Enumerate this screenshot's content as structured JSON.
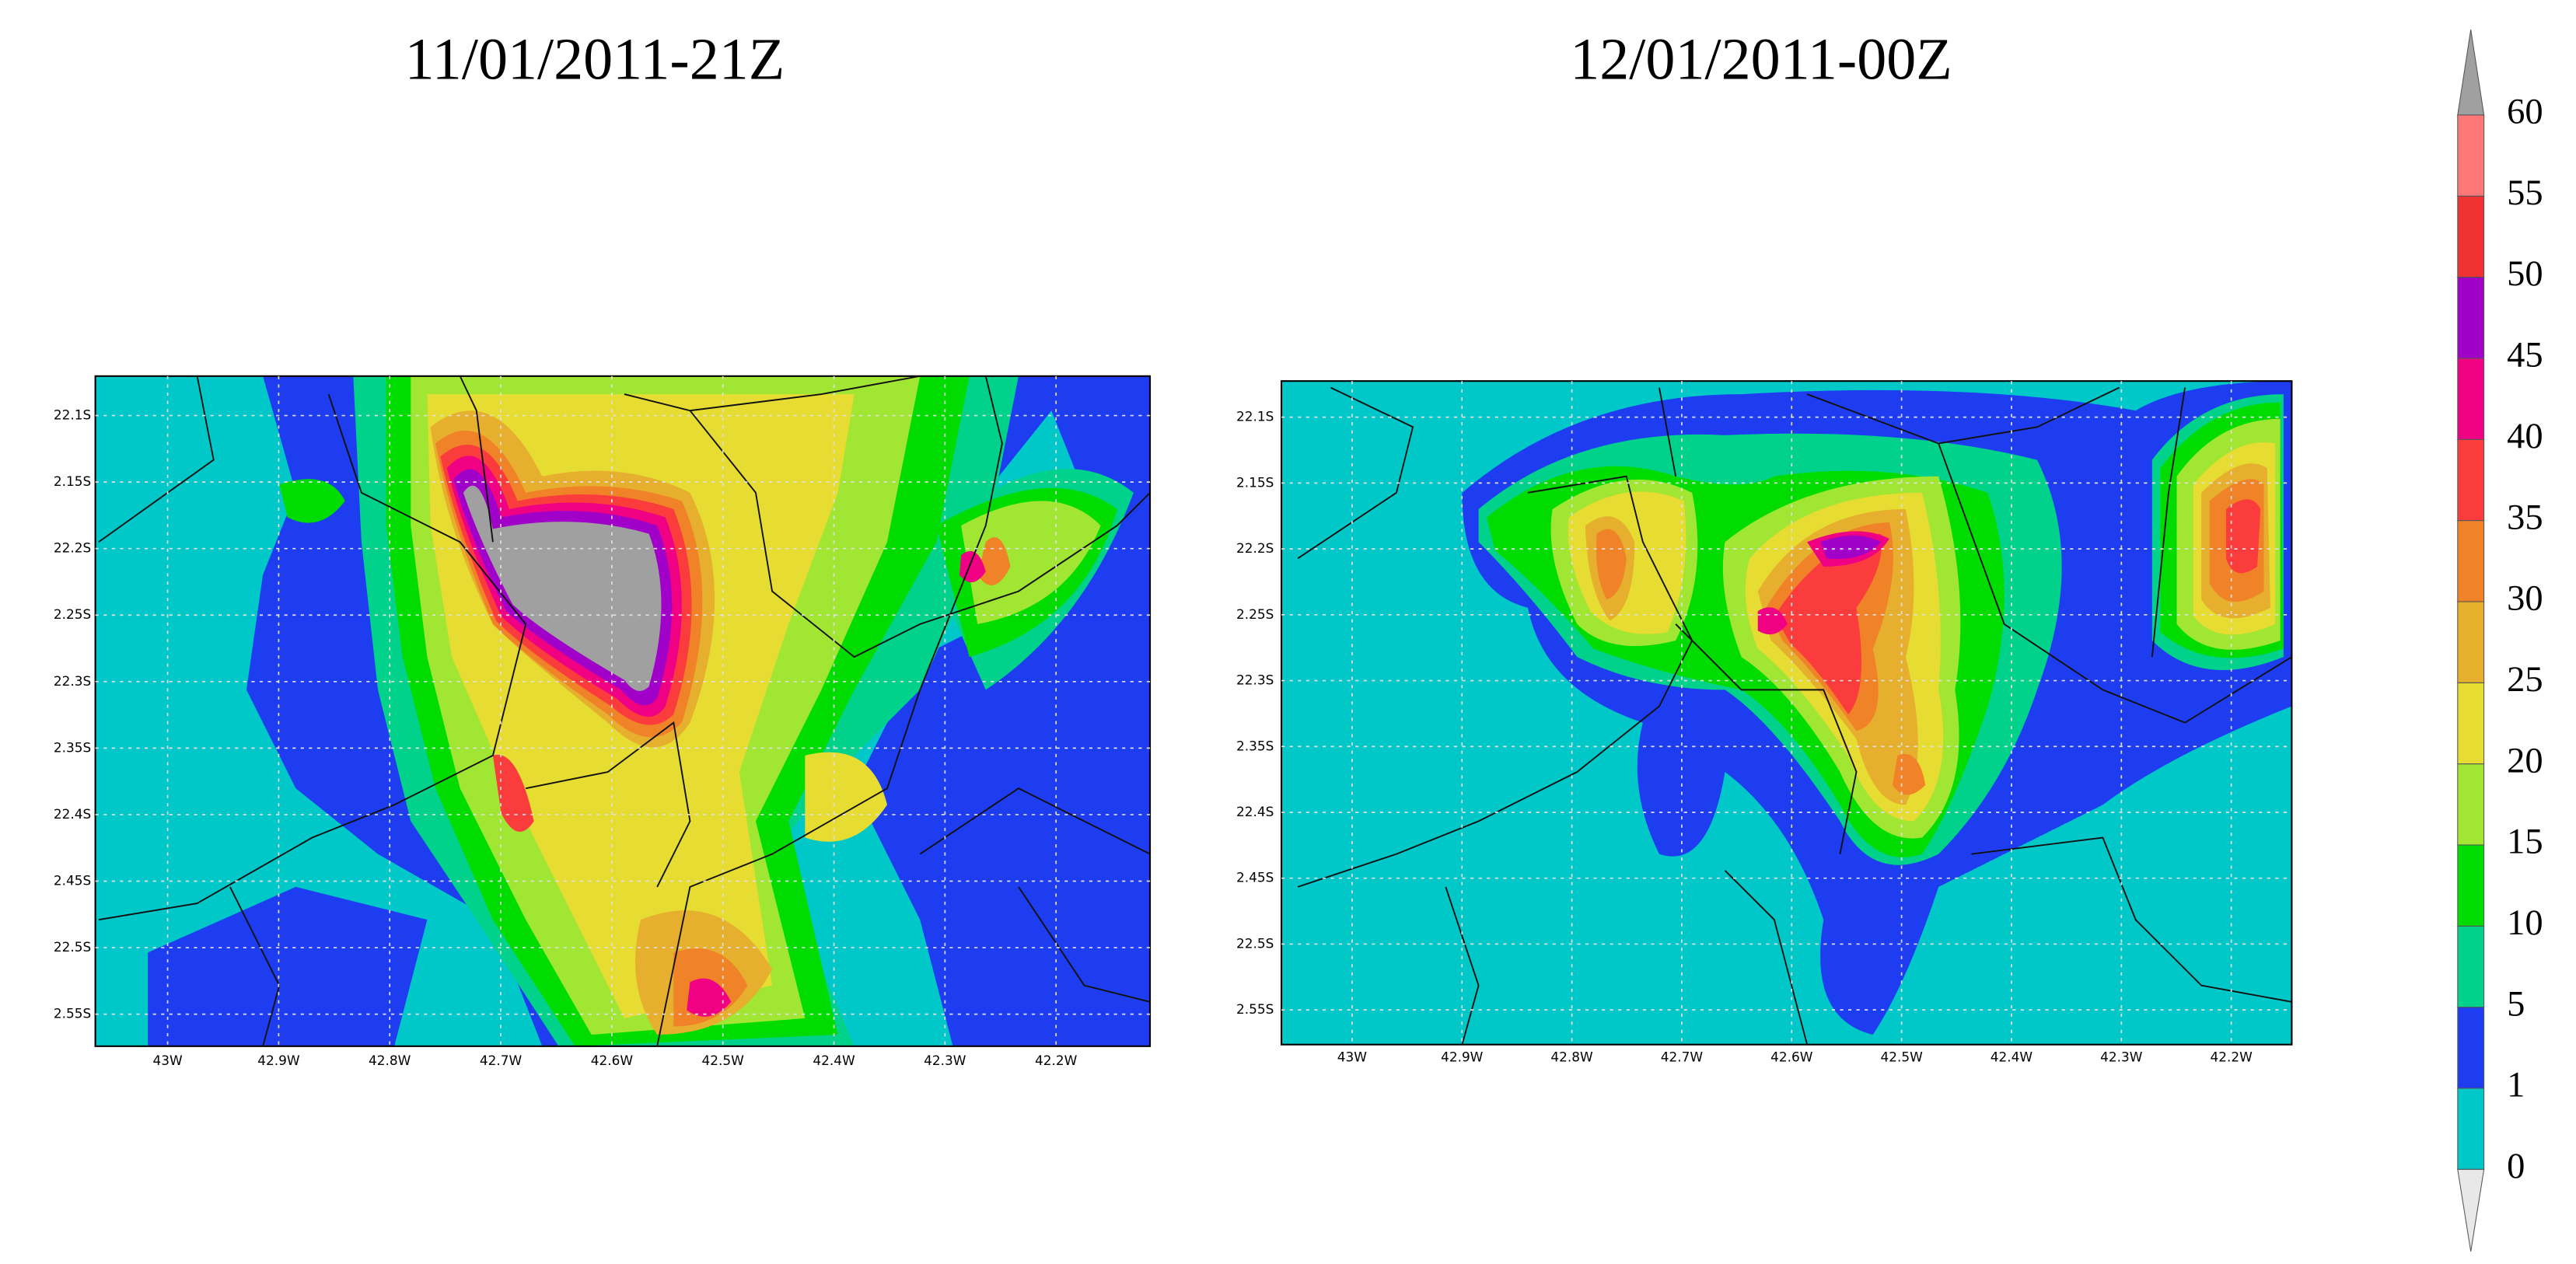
{
  "panels": [
    {
      "title": "11/01/2011-21Z",
      "y_labels": [
        "22.1S",
        "2.15S",
        "22.2S",
        "2.25S",
        "22.3S",
        "2.35S",
        "22.4S",
        "2.45S",
        "22.5S",
        "2.55S"
      ],
      "x_labels": [
        "43W",
        "42.9W",
        "42.8W",
        "42.7W",
        "42.6W",
        "42.5W",
        "42.4W",
        "42.3W",
        "42.2W"
      ]
    },
    {
      "title": "12/01/2011-00Z",
      "y_labels": [
        "22.1S",
        "2.15S",
        "22.2S",
        "2.25S",
        "22.3S",
        "2.35S",
        "22.4S",
        "2.45S",
        "22.5S",
        "2.55S"
      ],
      "x_labels": [
        "43W",
        "42.9W",
        "42.8W",
        "42.7W",
        "42.6W",
        "42.5W",
        "42.4W",
        "42.3W",
        "42.2W"
      ]
    }
  ],
  "colorbar": {
    "levels": [
      "0",
      "1",
      "5",
      "10",
      "15",
      "20",
      "25",
      "30",
      "35",
      "40",
      "45",
      "50",
      "55",
      "60"
    ],
    "colors": [
      "#00c8c8",
      "#1e3cf0",
      "#00d28c",
      "#00dc00",
      "#a0e632",
      "#e6dc32",
      "#e6af2d",
      "#f08228",
      "#fa3c3c",
      "#f00082",
      "#a000c8",
      "#f03232",
      "#ff7878"
    ],
    "over_color": "#a0a0a0",
    "under_color": "#e8e8e8"
  }
}
